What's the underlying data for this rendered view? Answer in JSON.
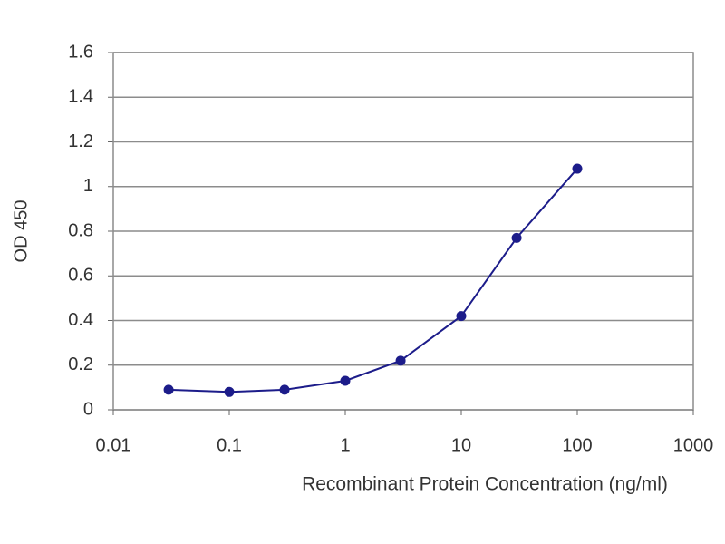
{
  "chart_data": {
    "type": "line",
    "x_label": "Recombinant Protein Concentration (ng/ml)",
    "y_label": "OD 450",
    "x": [
      0.03,
      0.1,
      0.3,
      1,
      3,
      10,
      30,
      100
    ],
    "series": [
      {
        "color": "#1c1c8a",
        "values": [
          0.09,
          0.08,
          0.09,
          0.13,
          0.22,
          0.42,
          0.77,
          1.08
        ]
      }
    ],
    "xscale": "log",
    "xlim": [
      0.01,
      1000
    ],
    "xticks": [
      0.01,
      0.1,
      1,
      10,
      100,
      1000
    ],
    "ylim": [
      0,
      1.6
    ],
    "yticks": [
      0,
      0.2,
      0.4,
      0.6,
      0.8,
      1,
      1.2,
      1.4,
      1.6
    ],
    "grid": true
  }
}
